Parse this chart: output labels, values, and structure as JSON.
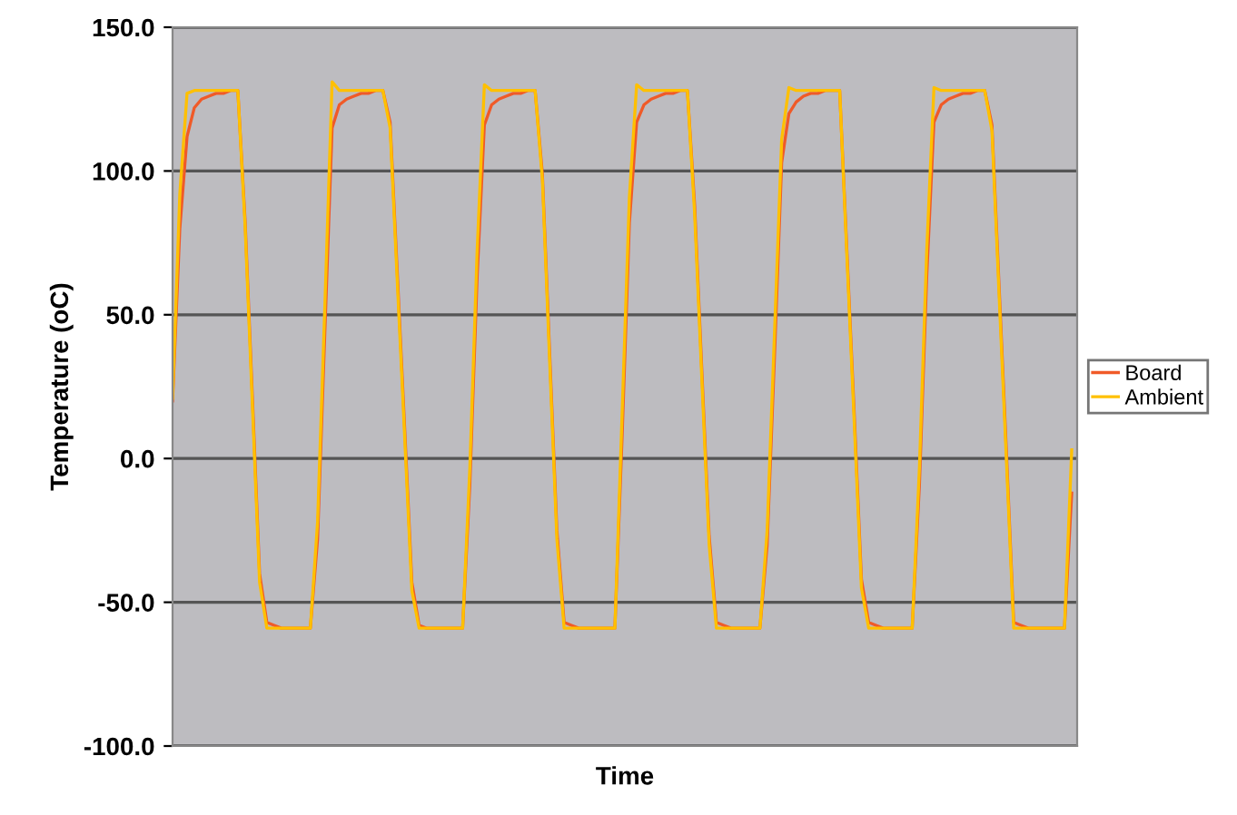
{
  "chart_data": {
    "type": "line",
    "xlabel": "Time",
    "ylabel": "Temperature (oC)",
    "categories": [
      null,
      null,
      null,
      null,
      null,
      null,
      null,
      null,
      null,
      null,
      null,
      null,
      null,
      null,
      null,
      null,
      null,
      null,
      null,
      null,
      null,
      null,
      null,
      null,
      null,
      null,
      null,
      null,
      null,
      null,
      null,
      null,
      null,
      null,
      null,
      null,
      null,
      null,
      null,
      null,
      null,
      null,
      null,
      null,
      null,
      null,
      null,
      null,
      null,
      null,
      null,
      null,
      null,
      null,
      null,
      null,
      null,
      null,
      null,
      null,
      null,
      null,
      null,
      null,
      null,
      null,
      null,
      null,
      null,
      null,
      null,
      null,
      null,
      null,
      null,
      null,
      null,
      null,
      null,
      null,
      null,
      null,
      null,
      null,
      null,
      null,
      null,
      null,
      null,
      null,
      null,
      null,
      null,
      null,
      null,
      null,
      null,
      null,
      null,
      null,
      null,
      null,
      null,
      null,
      null,
      null,
      null,
      null,
      null,
      null,
      null,
      null,
      null,
      null,
      null,
      null,
      null,
      null,
      null,
      null,
      null,
      null,
      null,
      null,
      null
    ],
    "series": [
      {
        "name": "Board",
        "color": "#f05a28",
        "values": [
          20,
          80,
          112,
          122,
          125,
          126,
          127,
          127,
          128,
          128,
          83,
          22,
          -40,
          -57,
          -58,
          -59,
          -59,
          -59,
          -59,
          -59,
          -28,
          44,
          115,
          123,
          125,
          126,
          127,
          127,
          128,
          128,
          117,
          64,
          11,
          -43,
          -58,
          -59,
          -59,
          -59,
          -59,
          -59,
          -59,
          -9,
          63,
          116,
          123,
          125,
          126,
          127,
          127,
          128,
          128,
          99,
          37,
          -25,
          -57,
          -58,
          -59,
          -59,
          -59,
          -59,
          -59,
          -59,
          8,
          82,
          117,
          123,
          125,
          126,
          127,
          127,
          128,
          128,
          88,
          30,
          -27,
          -57,
          -58,
          -59,
          -59,
          -59,
          -59,
          -59,
          -30,
          35,
          103,
          120,
          124,
          126,
          127,
          127,
          128,
          128,
          128,
          72,
          16,
          -42,
          -57,
          -58,
          -59,
          -59,
          -59,
          -59,
          -59,
          -9,
          63,
          117,
          123,
          125,
          126,
          127,
          127,
          128,
          128,
          116,
          59,
          2,
          -57,
          -58,
          -59,
          -59,
          -59,
          -59,
          -59,
          -59,
          -12
        ]
      },
      {
        "name": "Ambient",
        "color": "#ffc000",
        "values": [
          21,
          92,
          127,
          128,
          128,
          128,
          128,
          128,
          128,
          128,
          81,
          19,
          -43,
          -59,
          -59,
          -59,
          -59,
          -59,
          -59,
          -59,
          -22,
          53,
          131,
          128,
          128,
          128,
          128,
          128,
          128,
          128,
          115,
          61,
          8,
          -46,
          -59,
          -59,
          -59,
          -59,
          -59,
          -59,
          -59,
          -3,
          72,
          130,
          128,
          128,
          128,
          128,
          128,
          128,
          128,
          97,
          34,
          -28,
          -59,
          -59,
          -59,
          -59,
          -59,
          -59,
          -59,
          -59,
          16,
          91,
          130,
          128,
          128,
          128,
          128,
          128,
          128,
          128,
          85,
          27,
          -30,
          -59,
          -59,
          -59,
          -59,
          -59,
          -59,
          -59,
          -25,
          43,
          111,
          129,
          128,
          128,
          128,
          128,
          128,
          128,
          128,
          70,
          13,
          -45,
          -59,
          -59,
          -59,
          -59,
          -59,
          -59,
          -59,
          -3,
          72,
          129,
          128,
          128,
          128,
          128,
          128,
          128,
          128,
          114,
          56,
          -1,
          -59,
          -59,
          -59,
          -59,
          -59,
          -59,
          -59,
          -59,
          3
        ]
      }
    ],
    "ylim": [
      -100,
      150
    ],
    "yticks": [
      {
        "value": -100,
        "label": "-100.0"
      },
      {
        "value": -50,
        "label": "-50.0"
      },
      {
        "value": 0,
        "label": "0.0"
      },
      {
        "value": 50,
        "label": "50.0"
      },
      {
        "value": 100,
        "label": "100.0"
      },
      {
        "value": 150,
        "label": "150.0"
      }
    ],
    "grid": "y",
    "legend": "right",
    "tick_labels": "y",
    "line_style": "solid",
    "marker": "none"
  }
}
